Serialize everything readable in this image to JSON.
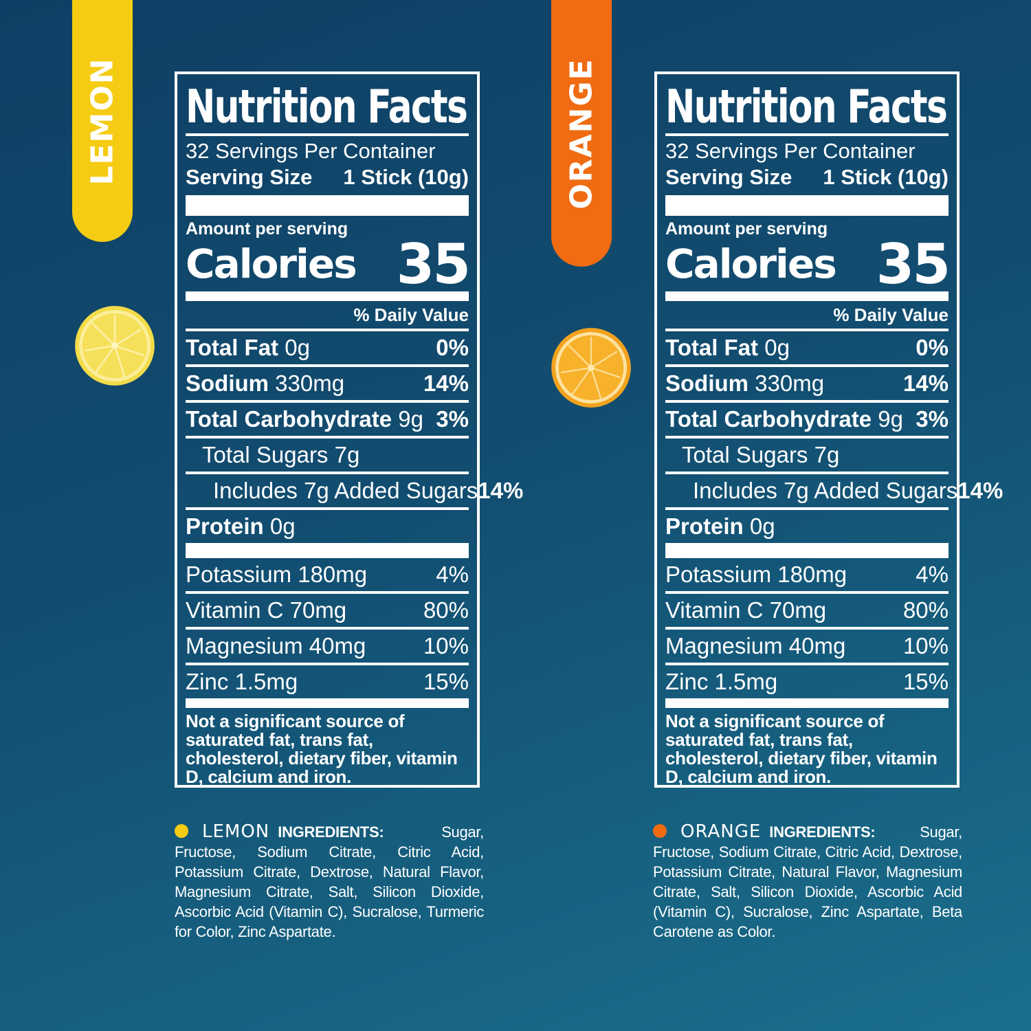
{
  "colors": {
    "lemon": "#f5cc13",
    "orange": "#f06b12",
    "background": "#124d70"
  },
  "products": [
    {
      "flavor": "LEMON",
      "fruit_icon": "lemon-slice-icon",
      "panel": {
        "title": "Nutrition Facts",
        "servings": "32 Servings Per Container",
        "serving_size_label": "Serving Size",
        "serving_size_value": "1 Stick (10g)",
        "amount_per_serving": "Amount per serving",
        "calories_label": "Calories",
        "calories_value": "35",
        "daily_value_header": "% Daily Value",
        "nutrients": [
          {
            "name": "Total Fat",
            "amount": "0g",
            "dv": "0%"
          },
          {
            "name": "Sodium",
            "amount": "330mg",
            "dv": "14%"
          },
          {
            "name": "Total Carbohydrate",
            "amount": "9g",
            "dv": "3%"
          },
          {
            "name": "Total Sugars 7g",
            "amount": "",
            "dv": ""
          },
          {
            "name": "Includes 7g Added Sugars",
            "amount": "",
            "dv": "14%"
          },
          {
            "name": "Protein",
            "amount": "0g",
            "dv": ""
          }
        ],
        "vitamins": [
          {
            "name": "Potassium 180mg",
            "dv": "4%"
          },
          {
            "name": "Vitamin C 70mg",
            "dv": "80%"
          },
          {
            "name": "Magnesium 40mg",
            "dv": "10%"
          },
          {
            "name": "Zinc 1.5mg",
            "dv": "15%"
          }
        ],
        "footnote": "Not a significant source of saturated fat, trans fat, cholesterol, dietary fiber, vitamin D, calcium and iron."
      },
      "ingredients_heading": "INGREDIENTS:",
      "ingredients": "Sugar, Fructose, Sodium Citrate, Citric Acid, Potassium Citrate, Dextrose, Natural Flavor, Magnesium Citrate, Salt, Silicon Dioxide, Ascorbic Acid (Vitamin C), Sucralose, Turmeric for Color, Zinc Aspartate."
    },
    {
      "flavor": "ORANGE",
      "fruit_icon": "orange-slice-icon",
      "panel": {
        "title": "Nutrition Facts",
        "servings": "32 Servings Per Container",
        "serving_size_label": "Serving Size",
        "serving_size_value": "1 Stick (10g)",
        "amount_per_serving": "Amount per serving",
        "calories_label": "Calories",
        "calories_value": "35",
        "daily_value_header": "% Daily Value",
        "nutrients": [
          {
            "name": "Total Fat",
            "amount": "0g",
            "dv": "0%"
          },
          {
            "name": "Sodium",
            "amount": "330mg",
            "dv": "14%"
          },
          {
            "name": "Total Carbohydrate",
            "amount": "9g",
            "dv": "3%"
          },
          {
            "name": "Total Sugars 7g",
            "amount": "",
            "dv": ""
          },
          {
            "name": "Includes 7g Added Sugars",
            "amount": "",
            "dv": "14%"
          },
          {
            "name": "Protein",
            "amount": "0g",
            "dv": ""
          }
        ],
        "vitamins": [
          {
            "name": "Potassium 180mg",
            "dv": "4%"
          },
          {
            "name": "Vitamin C 70mg",
            "dv": "80%"
          },
          {
            "name": "Magnesium 40mg",
            "dv": "10%"
          },
          {
            "name": "Zinc 1.5mg",
            "dv": "15%"
          }
        ],
        "footnote": "Not a significant source of saturated fat, trans fat, cholesterol, dietary fiber, vitamin D, calcium and iron."
      },
      "ingredients_heading": "INGREDIENTS:",
      "ingredients": "Sugar, Fructose, Sodium Citrate, Citric Acid, Dextrose, Potassium Citrate, Natural Flavor, Magnesium Citrate, Salt, Silicon Dioxide, Ascorbic Acid (Vitamin C), Sucralose, Zinc Aspartate, Beta Carotene as Color."
    }
  ]
}
